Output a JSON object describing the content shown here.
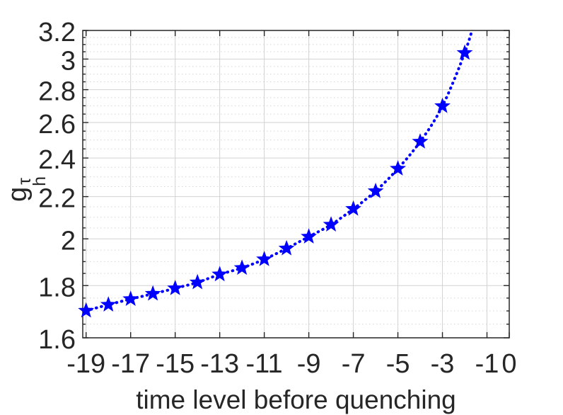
{
  "chart_data": {
    "type": "line",
    "title": "",
    "xlabel": "time level before quenching",
    "ylabel": {
      "base": "g",
      "sub": "h",
      "sup": "τ"
    },
    "yscale": "log",
    "xscale": "linear",
    "xlim": [
      -19.15,
      0
    ],
    "ylim": [
      1.6,
      3.2
    ],
    "grid": true,
    "y_minor_grid": true,
    "y_minor_step": 0.05,
    "legend": "none",
    "xticks": {
      "values": [
        -19,
        -17,
        -15,
        -13,
        -11,
        -9,
        -7,
        -5,
        -3,
        -1,
        0
      ],
      "labels": [
        "-19",
        "-17",
        "-15",
        "-13",
        "-11",
        "-9",
        "-7",
        "-5",
        "-3",
        "-1",
        "0"
      ]
    },
    "yticks": {
      "values": [
        1.6,
        1.8,
        2.0,
        2.2,
        2.4,
        2.6,
        2.8,
        3.0,
        3.2
      ],
      "labels": [
        "1.6",
        "1.8",
        "2",
        "2.2",
        "2.4",
        "2.6",
        "2.8",
        "3",
        "3.2"
      ]
    },
    "series": [
      {
        "name": "g_h_tau",
        "marker": "pentagram",
        "line_style": "dotted",
        "color": "#0000ff",
        "x": [
          -19,
          -18,
          -17,
          -16,
          -15,
          -14,
          -13,
          -12,
          -11,
          -10,
          -9,
          -8,
          -7,
          -6,
          -5,
          -4,
          -3,
          -2
        ],
        "y": [
          1.701,
          1.724,
          1.746,
          1.767,
          1.789,
          1.813,
          1.846,
          1.873,
          1.91,
          1.957,
          2.01,
          2.065,
          2.14,
          2.227,
          2.343,
          2.49,
          2.698,
          3.042
        ],
        "curve_extension": {
          "x": -1.5,
          "y": 3.3
        }
      }
    ],
    "colors": {
      "line": "#0000ff",
      "axis": "#262626",
      "tick_label": "#262626",
      "grid": "#d2d2d2",
      "minor_grid": "#d7d7d7",
      "background": "#ffffff"
    }
  }
}
